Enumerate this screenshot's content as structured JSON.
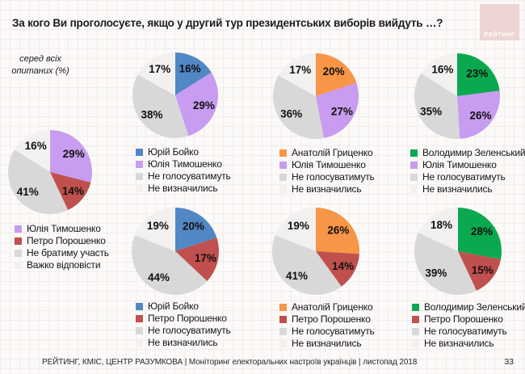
{
  "title": "За кого Ви проголосуєте, якщо у другий тур президентських виборів вийдуть …?",
  "logo_text": "РЕЙТИНГ",
  "note": {
    "line1": "серед всіх",
    "line2": "опитаних (%)"
  },
  "footer": {
    "text": "РЕЙТИНГ, КМІС, ЦЕНТР РАЗУМКОВА | Моніторинг електоральних настроїв українців | листопад 2018",
    "page": "33"
  },
  "palette": {
    "boyko": "#5287C5",
    "tymoshenko": "#C89CF0",
    "poroshenko": "#C0504D",
    "hrytsenko": "#F79646",
    "zelenskyi": "#0BA94F",
    "novote": "#D8D8D8",
    "undecided": "#F2F1F0"
  },
  "chart_data": [
    {
      "id": "all-respondents",
      "type": "pie",
      "unit": "%",
      "slices": [
        {
          "label": "Юлія Тимошенко",
          "value": 29,
          "color": "tymoshenko"
        },
        {
          "label": "Петро Порошенко",
          "value": 14,
          "color": "poroshenko"
        },
        {
          "label": "Не братиму участь",
          "value": 41,
          "color": "novote"
        },
        {
          "label": "Важко відповісти",
          "value": 16,
          "color": "undecided"
        }
      ]
    },
    {
      "id": "boyko-tymoshenko",
      "type": "pie",
      "unit": "%",
      "slices": [
        {
          "label": "Юрій Бойко",
          "value": 16,
          "color": "boyko"
        },
        {
          "label": "Юлія Тимошенко",
          "value": 29,
          "color": "tymoshenko"
        },
        {
          "label": "Не голосуватимуть",
          "value": 38,
          "color": "novote"
        },
        {
          "label": "Не визначились",
          "value": 17,
          "color": "undecided"
        }
      ]
    },
    {
      "id": "hrytsenko-tymoshenko",
      "type": "pie",
      "unit": "%",
      "slices": [
        {
          "label": "Анатолій Гриценко",
          "value": 20,
          "color": "hrytsenko"
        },
        {
          "label": "Юлія Тимошенко",
          "value": 27,
          "color": "tymoshenko"
        },
        {
          "label": "Не голосуватимуть",
          "value": 36,
          "color": "novote"
        },
        {
          "label": "Не визначились",
          "value": 17,
          "color": "undecided"
        }
      ]
    },
    {
      "id": "zelenskyi-tymoshenko",
      "type": "pie",
      "unit": "%",
      "slices": [
        {
          "label": "Володимир Зеленський",
          "value": 23,
          "color": "zelenskyi"
        },
        {
          "label": "Юлія Тимошенко",
          "value": 26,
          "color": "tymoshenko"
        },
        {
          "label": "Не голосуватимуть",
          "value": 35,
          "color": "novote"
        },
        {
          "label": "Не визначились",
          "value": 16,
          "color": "undecided"
        }
      ]
    },
    {
      "id": "boyko-poroshenko",
      "type": "pie",
      "unit": "%",
      "slices": [
        {
          "label": "Юрій Бойко",
          "value": 20,
          "color": "boyko"
        },
        {
          "label": "Петро Порошенко",
          "value": 17,
          "color": "poroshenko"
        },
        {
          "label": "Не голосуватимуть",
          "value": 44,
          "color": "novote"
        },
        {
          "label": "Не визначились",
          "value": 19,
          "color": "undecided"
        }
      ]
    },
    {
      "id": "hrytsenko-poroshenko",
      "type": "pie",
      "unit": "%",
      "slices": [
        {
          "label": "Анатолій Гриценко",
          "value": 26,
          "color": "hrytsenko"
        },
        {
          "label": "Петро Порошенко",
          "value": 14,
          "color": "poroshenko"
        },
        {
          "label": "Не голосуватимуть",
          "value": 41,
          "color": "novote"
        },
        {
          "label": "Не визначились",
          "value": 19,
          "color": "undecided"
        }
      ]
    },
    {
      "id": "zelenskyi-poroshenko",
      "type": "pie",
      "unit": "%",
      "slices": [
        {
          "label": "Володимир Зеленський",
          "value": 28,
          "color": "zelenskyi"
        },
        {
          "label": "Петро Порошенко",
          "value": 15,
          "color": "poroshenko"
        },
        {
          "label": "Не голосуватимуть",
          "value": 39,
          "color": "novote"
        },
        {
          "label": "Не визначились",
          "value": 18,
          "color": "undecided"
        }
      ]
    }
  ]
}
